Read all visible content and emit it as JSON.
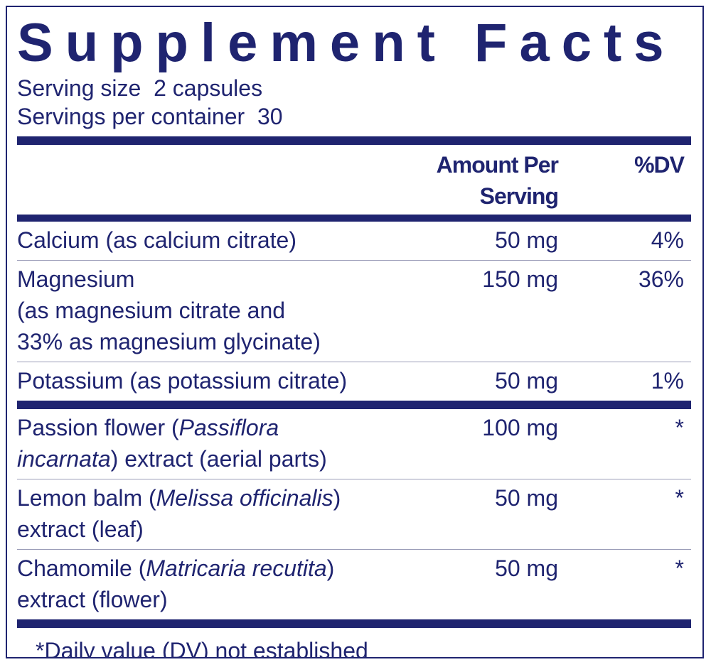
{
  "title": "Supplement Facts",
  "serving_size": "Serving size  2 capsules",
  "servings_per_container": "Servings per container  30",
  "header": {
    "amount": "Amount Per Serving",
    "dv": "%DV"
  },
  "groups": [
    [
      {
        "lines": [
          [
            {
              "text": "Calcium (as calcium citrate)",
              "italic": false
            }
          ]
        ],
        "amount": "50 mg",
        "dv": "4%"
      },
      {
        "lines": [
          [
            {
              "text": "Magnesium",
              "italic": false
            }
          ],
          [
            {
              "text": "(as magnesium citrate and",
              "italic": false
            }
          ],
          [
            {
              "text": "33% as magnesium glycinate)",
              "italic": false
            }
          ]
        ],
        "amount": "150 mg",
        "dv": "36%"
      },
      {
        "lines": [
          [
            {
              "text": "Potassium (as potassium citrate)",
              "italic": false
            }
          ]
        ],
        "amount": "50 mg",
        "dv": "1%"
      }
    ],
    [
      {
        "lines": [
          [
            {
              "text": "Passion flower (",
              "italic": false
            },
            {
              "text": "Passiflora",
              "italic": true
            }
          ],
          [
            {
              "text": "incarnata",
              "italic": true
            },
            {
              "text": ") extract (aerial parts)",
              "italic": false
            }
          ]
        ],
        "amount": "100 mg",
        "dv": "*"
      },
      {
        "lines": [
          [
            {
              "text": "Lemon balm (",
              "italic": false
            },
            {
              "text": "Melissa officinalis",
              "italic": true
            },
            {
              "text": ")",
              "italic": false
            }
          ],
          [
            {
              "text": "extract (leaf)",
              "italic": false
            }
          ]
        ],
        "amount": "50 mg",
        "dv": "*"
      },
      {
        "lines": [
          [
            {
              "text": "Chamomile (",
              "italic": false
            },
            {
              "text": "Matricaria recutita",
              "italic": true
            },
            {
              "text": ")",
              "italic": false
            }
          ],
          [
            {
              "text": "extract (flower)",
              "italic": false
            }
          ]
        ],
        "amount": "50 mg",
        "dv": "*"
      }
    ]
  ],
  "footnote": "*Daily value (DV) not established"
}
